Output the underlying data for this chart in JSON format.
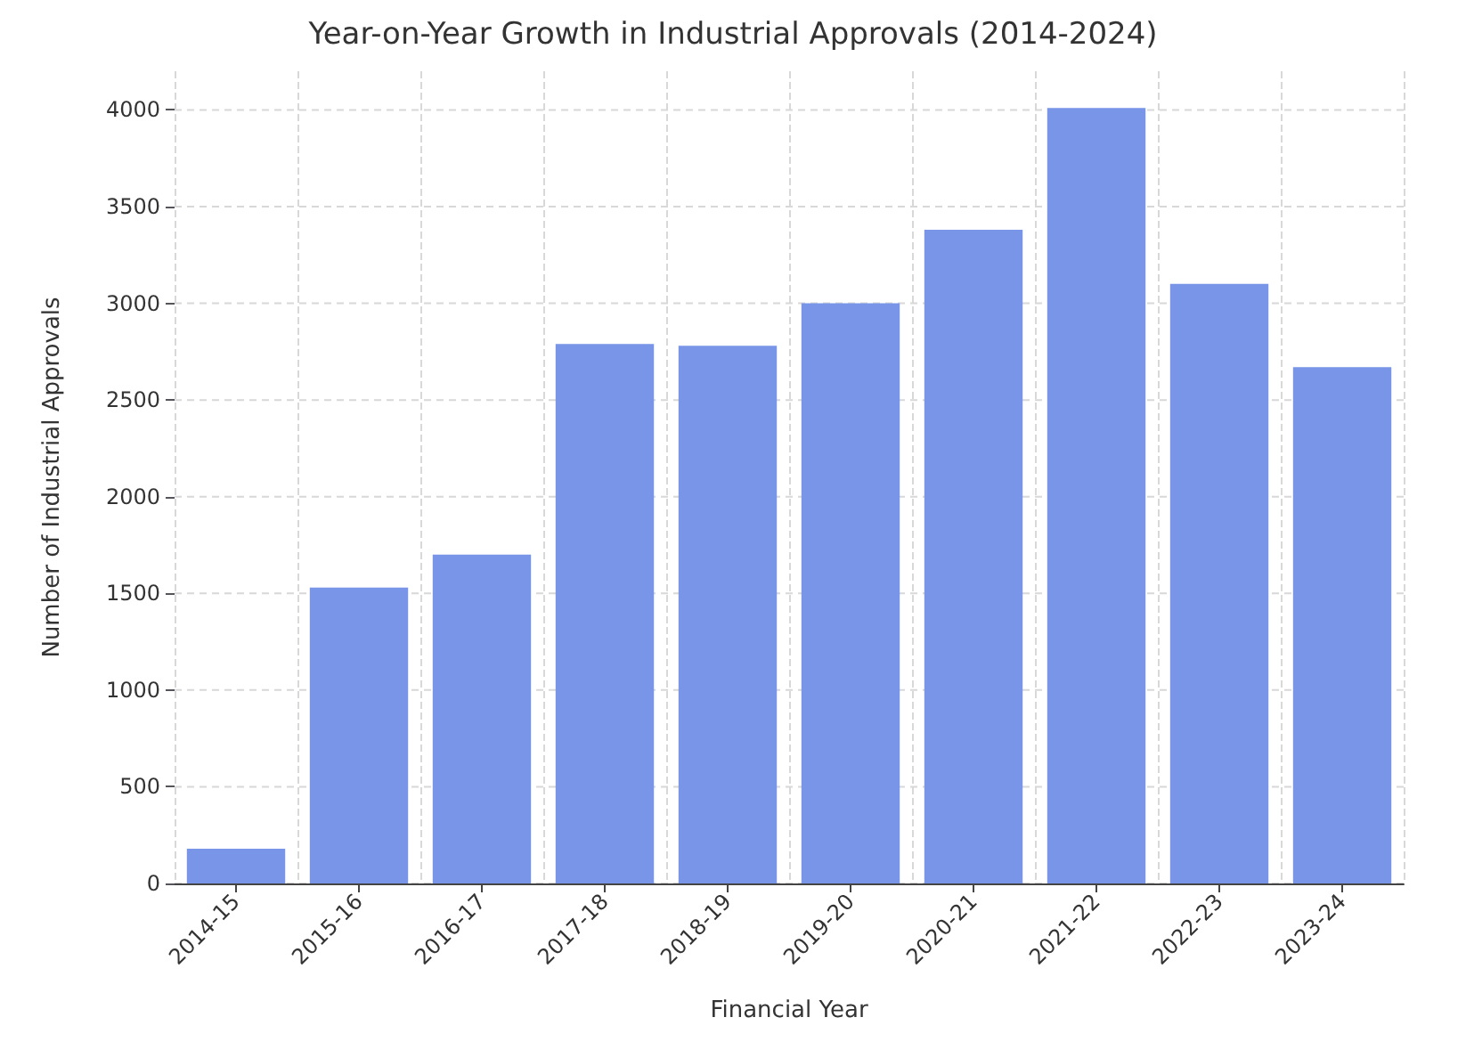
{
  "chart_data": {
    "type": "bar",
    "title": "Year-on-Year Growth in Industrial Approvals (2014-2024)",
    "xlabel": "Financial Year",
    "ylabel": "Number of Industrial Approvals",
    "categories": [
      "2014-15",
      "2015-16",
      "2016-17",
      "2017-18",
      "2018-19",
      "2019-20",
      "2020-21",
      "2021-22",
      "2022-23",
      "2023-24"
    ],
    "values": [
      180,
      1530,
      1700,
      2790,
      2780,
      3000,
      3380,
      4010,
      3100,
      2670
    ],
    "color": "#7995e8",
    "ylim": [
      0,
      4200
    ],
    "yticks": [
      0,
      500,
      1000,
      1500,
      2000,
      2500,
      3000,
      3500,
      4000
    ],
    "grid": true
  }
}
